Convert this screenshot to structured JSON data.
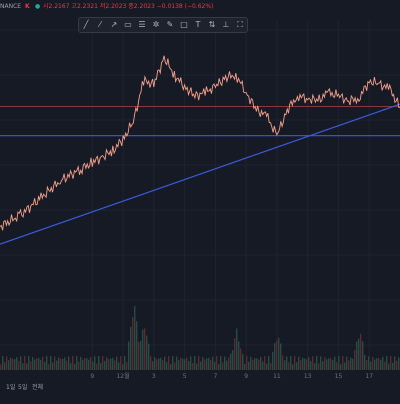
{
  "header": {
    "symbol": "NANCE",
    "exchange_badge": "K",
    "ohlc": "시2.2167 고2.2321 저2.2023 종2.2023 −0.0138 (−0.62%)",
    "colors": {
      "badge": "#f23645",
      "ohlc": "#f23645"
    }
  },
  "toolbar": {
    "tools": [
      {
        "icon": "trendline-icon",
        "glyph": "╱"
      },
      {
        "icon": "horizontal-line-icon",
        "glyph": "⁄"
      },
      {
        "icon": "ray-icon",
        "glyph": "↗"
      },
      {
        "icon": "parallel-channel-icon",
        "glyph": "▭"
      },
      {
        "icon": "fib-retracement-icon",
        "glyph": "☰"
      },
      {
        "icon": "pattern-icon",
        "glyph": "✲"
      },
      {
        "icon": "brush-icon",
        "glyph": "✎"
      },
      {
        "icon": "rectangle-icon",
        "glyph": "□"
      },
      {
        "icon": "text-icon",
        "glyph": "T"
      },
      {
        "icon": "long-position-icon",
        "glyph": "⇅"
      },
      {
        "icon": "measure-icon",
        "glyph": "⊥"
      },
      {
        "icon": "fullscreen-icon",
        "glyph": "⛶"
      }
    ]
  },
  "bottom_bar": {
    "ranges": [
      "1일",
      "5일",
      "전체"
    ]
  },
  "chart_data": {
    "type": "line",
    "title": "",
    "xlabel": "",
    "ylabel": "",
    "grid": true,
    "x_tick_labels": [
      "9",
      "12월",
      "3",
      "5",
      "7",
      "9",
      "11",
      "13",
      "15",
      "17"
    ],
    "x_tick_dates": [
      9,
      12,
      15,
      18,
      21,
      24,
      27,
      30,
      33,
      36
    ],
    "x": [
      0,
      2,
      4,
      6,
      8,
      9,
      10,
      11,
      12,
      13,
      14,
      15,
      16,
      17,
      18,
      19,
      20,
      21,
      22,
      23,
      24,
      25,
      26,
      27,
      28,
      29,
      30,
      31,
      32,
      33,
      34,
      35,
      36,
      37,
      38,
      39
    ],
    "price": [
      2.5,
      2.6,
      2.75,
      2.9,
      3.0,
      3.05,
      3.1,
      3.15,
      3.25,
      3.4,
      3.75,
      3.72,
      3.95,
      3.8,
      3.7,
      3.62,
      3.65,
      3.7,
      3.78,
      3.8,
      3.65,
      3.5,
      3.45,
      3.28,
      3.5,
      3.62,
      3.6,
      3.58,
      3.65,
      3.62,
      3.58,
      3.6,
      3.75,
      3.72,
      3.68,
      3.52
    ],
    "series": [
      {
        "name": "",
        "role": "price",
        "color": "#f5a08a"
      },
      {
        "name": "",
        "role": "volume",
        "color": "#2a4a44"
      }
    ],
    "trendline": {
      "from": [
        0,
        2.35
      ],
      "to": [
        39,
        3.55
      ],
      "color": "#3b5bdb"
    },
    "support_line": {
      "y": 3.28,
      "color": "#3b5bdb"
    },
    "resistance_line": {
      "y": 3.53,
      "color": "#b2424a"
    },
    "volume_peaks": [
      {
        "x": 13,
        "v": 0.9
      },
      {
        "x": 14,
        "v": 0.6
      },
      {
        "x": 23,
        "v": 0.5
      },
      {
        "x": 27,
        "v": 0.45
      },
      {
        "x": 35,
        "v": 0.5
      }
    ]
  }
}
